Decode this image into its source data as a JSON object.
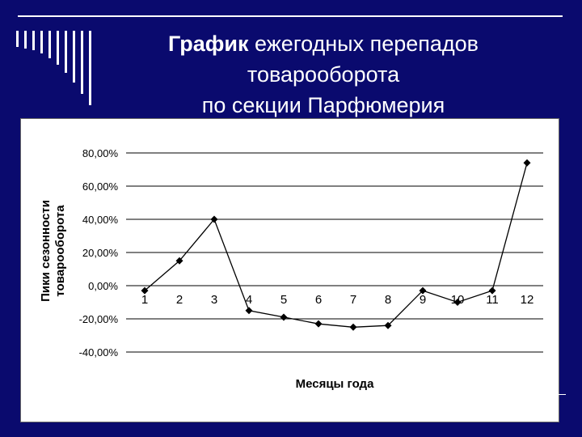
{
  "title": {
    "bold": "График",
    "line1_rest": " ежегодных перепадов",
    "line2": "товарооборота",
    "line3": "по секции Парфюмерия"
  },
  "chart_data": {
    "type": "line",
    "xlabel": "Месяцы года",
    "ylabel_line1": "Пики сезонности",
    "ylabel_line2": "товарооборота",
    "categories": [
      "1",
      "2",
      "3",
      "4",
      "5",
      "6",
      "7",
      "8",
      "9",
      "10",
      "11",
      "12"
    ],
    "values": [
      -3,
      15,
      40,
      -15,
      -19,
      -23,
      -25,
      -24,
      -3,
      -10,
      -3,
      74
    ],
    "yticks": [
      "80,00%",
      "60,00%",
      "40,00%",
      "20,00%",
      "0,00%",
      "-20,00%",
      "-40,00%"
    ],
    "ytick_values": [
      80,
      60,
      40,
      20,
      0,
      -20,
      -40
    ],
    "ylim": [
      -40,
      80
    ],
    "grid": true,
    "legend": "none",
    "colors": {
      "line": "#000000",
      "grid": "#000000",
      "background": "#ffffff"
    }
  }
}
